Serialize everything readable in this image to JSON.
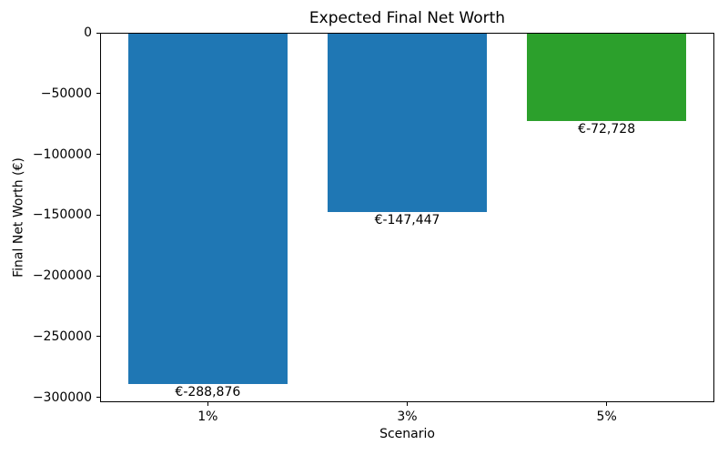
{
  "chart_data": {
    "type": "bar",
    "title": "Expected Final Net Worth",
    "xlabel": "Scenario",
    "ylabel": "Final Net Worth (€)",
    "categories": [
      "1%",
      "3%",
      "5%"
    ],
    "values": [
      -288876,
      -147447,
      -72728
    ],
    "bar_labels": [
      "€-288,876",
      "€-147,447",
      "€-72,728"
    ],
    "bar_colors": [
      "#1f77b4",
      "#1f77b4",
      "#2ca02c"
    ],
    "ylim": [
      -304000,
      0
    ],
    "xlim": [
      -0.54,
      2.54
    ],
    "bar_width_units": 0.8,
    "yticks": [
      0,
      -50000,
      -100000,
      -150000,
      -200000,
      -250000,
      -300000
    ],
    "ytick_labels": [
      "0",
      "−50000",
      "−100000",
      "−150000",
      "−200000",
      "−250000",
      "−300000"
    ],
    "grid": false,
    "legend": "none",
    "background_color": "#ffffff",
    "axis_color": "#000000"
  }
}
